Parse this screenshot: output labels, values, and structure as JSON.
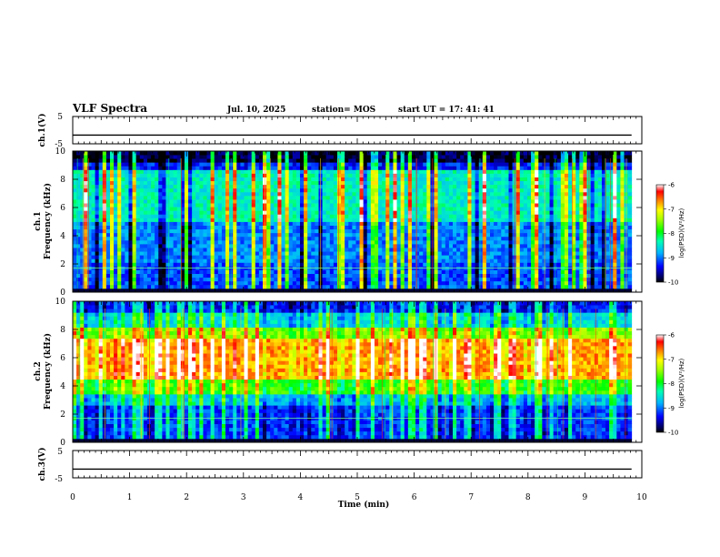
{
  "header": {
    "title": "VLF Spectra",
    "date": "Jul. 10, 2025",
    "station": "station= MOS",
    "start": "start  UT  =   17: 41: 41"
  },
  "chart_data": [
    {
      "type": "line",
      "name": "ch1-waveform",
      "ylabel": "ch.1(V)",
      "ylim": [
        -5,
        5
      ],
      "yticks": [
        "5",
        "-5"
      ],
      "level": -1.8,
      "xlim": [
        0,
        10
      ]
    },
    {
      "type": "heatmap",
      "name": "ch1-spectrogram",
      "ylabel": "ch.1\nFrequency (kHz)",
      "ylim": [
        0,
        10
      ],
      "yticks": [
        "0",
        "2",
        "4",
        "6",
        "8",
        "10"
      ],
      "xlim": [
        0,
        10
      ],
      "data_end_min": 9.82,
      "colorbar": {
        "label": "log(PSD)(V²/Hz)",
        "range": [
          -10,
          -6
        ],
        "ticks": [
          "-6",
          "-7",
          "-8",
          "-9",
          "-10"
        ]
      },
      "profile": "broadband"
    },
    {
      "type": "heatmap",
      "name": "ch2-spectrogram",
      "ylabel": "ch.2\nFrequency (kHz)",
      "ylim": [
        0,
        10
      ],
      "yticks": [
        "0",
        "2",
        "4",
        "6",
        "8",
        "10"
      ],
      "xlim": [
        0,
        10
      ],
      "data_end_min": 9.82,
      "colorbar": {
        "label": "log(PSD)(V²/Hz)",
        "range": [
          -10,
          -6
        ],
        "ticks": [
          "-6",
          "-7",
          "-8",
          "-9",
          "-10"
        ]
      },
      "profile": "band-6kHz"
    },
    {
      "type": "line",
      "name": "ch3-waveform",
      "ylabel": "ch.3(V)",
      "ylim": [
        -5,
        5
      ],
      "yticks": [
        "5",
        "-5"
      ],
      "level": -1.8,
      "xlim": [
        0,
        10
      ]
    }
  ],
  "xaxis": {
    "label": "Time  (min)",
    "ticks": [
      "0",
      "1",
      "2",
      "3",
      "4",
      "5",
      "6",
      "7",
      "8",
      "9",
      "10"
    ]
  }
}
